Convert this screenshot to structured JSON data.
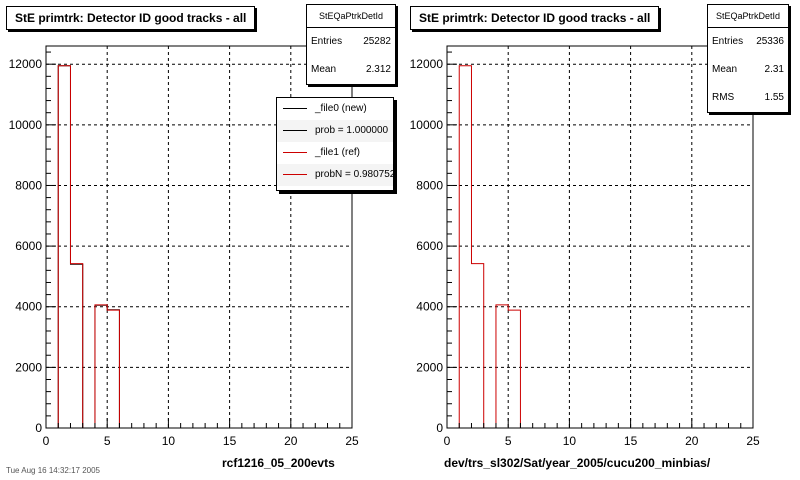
{
  "chart_data": [
    {
      "type": "bar",
      "title": "StE primtrk: Detector ID good tracks - all",
      "xlabel": "rcf1216_05_200evts",
      "ylabel": "",
      "xlim": [
        0,
        25
      ],
      "ylim": [
        0,
        12600
      ],
      "x_ticks": [
        0,
        5,
        10,
        15,
        20,
        25
      ],
      "y_ticks": [
        0,
        2000,
        4000,
        6000,
        8000,
        10000,
        12000
      ],
      "grid": true,
      "bin_edges": [
        0,
        1,
        2,
        3,
        4,
        5,
        6,
        7,
        8,
        9,
        10,
        11,
        12,
        13,
        14,
        15,
        16,
        17,
        18,
        19,
        20,
        21,
        22,
        23,
        24,
        25
      ],
      "series": [
        {
          "name": "_file0 (new)",
          "color": "#000000",
          "values": [
            0,
            11950,
            5400,
            0,
            4050,
            3900,
            0,
            0,
            0,
            0,
            0,
            0,
            0,
            0,
            0,
            0,
            0,
            0,
            0,
            0,
            0,
            0,
            0,
            0,
            0
          ]
        },
        {
          "name": "_file1 (ref)",
          "color": "#cc0000",
          "values": [
            0,
            11950,
            5420,
            0,
            4060,
            3890,
            0,
            0,
            0,
            0,
            0,
            0,
            0,
            0,
            0,
            0,
            0,
            0,
            0,
            0,
            0,
            0,
            0,
            0,
            0
          ]
        }
      ],
      "stats": {
        "name": "StEQaPtrkDetId",
        "entries_label": "Entries",
        "entries": "25282",
        "mean_label": "Mean",
        "mean": "2.312"
      },
      "legend": {
        "placement": "top-right",
        "entries": [
          {
            "text": "_file0 (new)",
            "color": "#000000"
          },
          {
            "text": "prob = 1.000000",
            "color": "#000000"
          },
          {
            "text": "_file1 (ref)",
            "color": "#cc0000"
          },
          {
            "text": "probN = 0.980752",
            "color": "#cc0000"
          }
        ]
      }
    },
    {
      "type": "bar",
      "title": "StE primtrk: Detector ID good tracks - all",
      "xlabel": "dev/trs_sl302/Sat/year_2005/cucu200_minbias/",
      "ylabel": "",
      "xlim": [
        0,
        25
      ],
      "ylim": [
        0,
        12600
      ],
      "x_ticks": [
        0,
        5,
        10,
        15,
        20,
        25
      ],
      "y_ticks": [
        0,
        2000,
        4000,
        6000,
        8000,
        10000,
        12000
      ],
      "grid": true,
      "bin_edges": [
        0,
        1,
        2,
        3,
        4,
        5,
        6,
        7,
        8,
        9,
        10,
        11,
        12,
        13,
        14,
        15,
        16,
        17,
        18,
        19,
        20,
        21,
        22,
        23,
        24,
        25
      ],
      "series": [
        {
          "name": "",
          "color": "#cc0000",
          "values": [
            0,
            11950,
            5420,
            0,
            4060,
            3890,
            0,
            0,
            0,
            0,
            0,
            0,
            0,
            0,
            0,
            0,
            0,
            0,
            0,
            0,
            0,
            0,
            0,
            0,
            0
          ]
        }
      ],
      "stats": {
        "name": "StEQaPtrkDetId",
        "entries_label": "Entries",
        "entries": "25336",
        "mean_label": "Mean",
        "mean": "2.31",
        "rms_label": "RMS",
        "rms": "1.55"
      }
    }
  ],
  "footer": "Tue Aug 16 14:32:17 2005"
}
